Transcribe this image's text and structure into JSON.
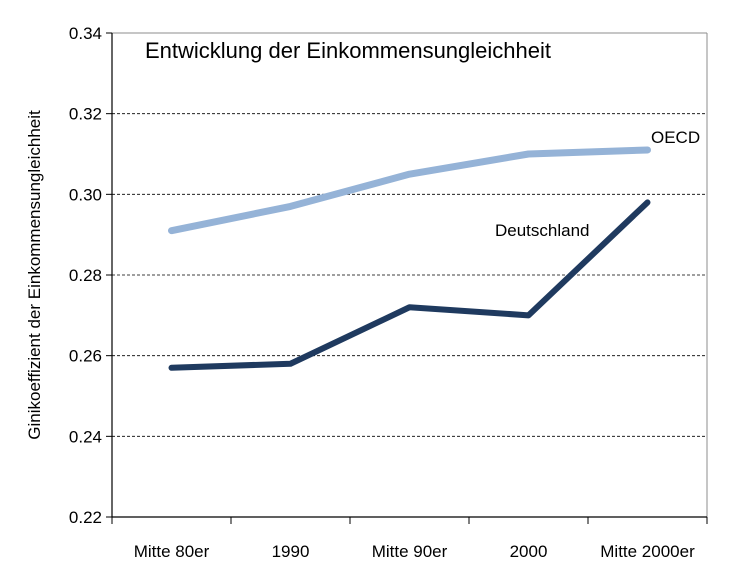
{
  "chart_data": {
    "type": "line",
    "title": "Entwicklung der Einkommensungleichheit",
    "xlabel": "",
    "ylabel": "Ginikoeffizient der Einkommensungleichheit",
    "categories": [
      "Mitte 80er",
      "1990",
      "Mitte 90er",
      "2000",
      "Mitte 2000er"
    ],
    "ylim": [
      0.22,
      0.34
    ],
    "yticks": [
      "0.22",
      "0.24",
      "0.26",
      "0.28",
      "0.30",
      "0.32",
      "0.34"
    ],
    "grid": "horizontal dashed",
    "legend": "inline labels at line ends",
    "series": [
      {
        "name": "OECD",
        "color": "#95b3d7",
        "values": [
          0.291,
          0.297,
          0.305,
          0.31,
          0.311
        ]
      },
      {
        "name": "Deutschland",
        "color": "#1f3a5f",
        "values": [
          0.257,
          0.258,
          0.272,
          0.27,
          0.298
        ]
      }
    ]
  }
}
